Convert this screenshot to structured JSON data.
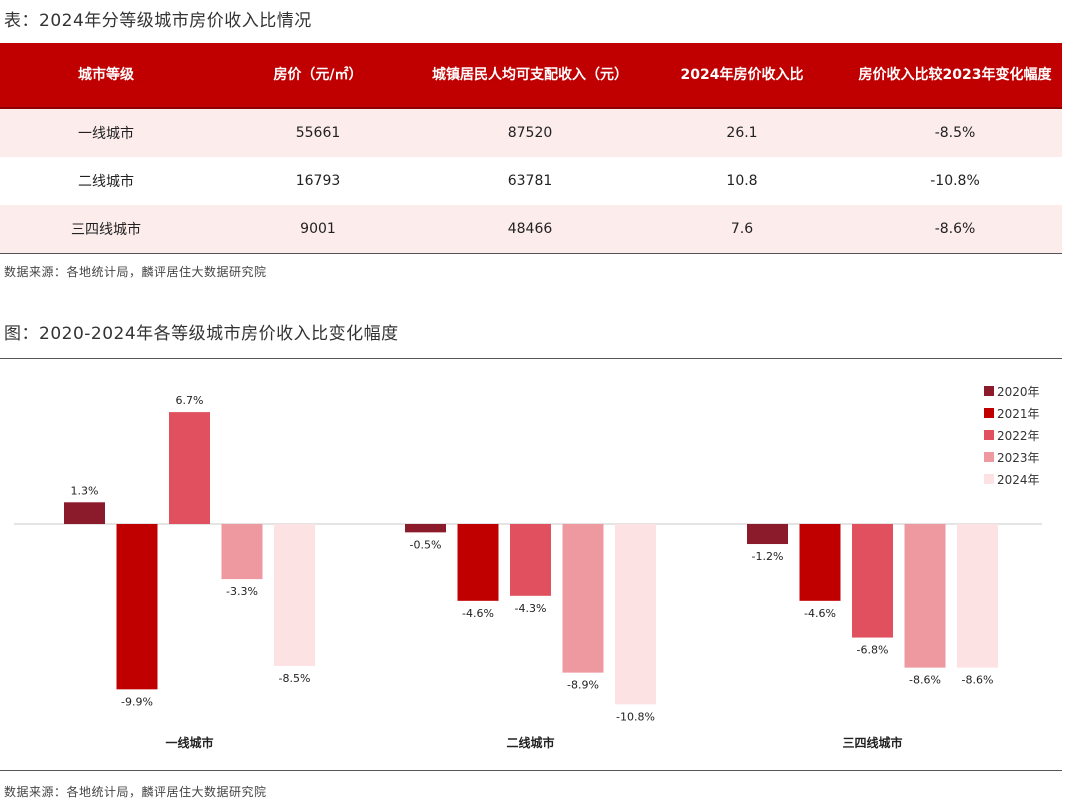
{
  "table": {
    "title": "表：2024年分等级城市房价收入比情况",
    "headers": [
      "城市等级",
      "房价（元/㎡）",
      "城镇居民人均可支配收入（元）",
      "2024年房价收入比",
      "房价收入比较2023年变化幅度"
    ],
    "rows": [
      [
        "一线城市",
        "55661",
        "87520",
        "26.1",
        "-8.5%"
      ],
      [
        "二线城市",
        "16793",
        "63781",
        "10.8",
        "-10.8%"
      ],
      [
        "三四线城市",
        "9001",
        "48466",
        "7.6",
        "-8.6%"
      ]
    ],
    "source": "数据来源：各地统计局，麟评居住大数据研究院"
  },
  "chart": {
    "title": "图：2020-2024年各等级城市房价收入比变化幅度",
    "source": "数据来源：各地统计局，麟评居住大数据研究院"
  },
  "colors": [
    "#8b1a2a",
    "#c00000",
    "#e0505e",
    "#ee99a0",
    "#fde2e4"
  ],
  "chart_data": {
    "type": "bar",
    "categories": [
      "一线城市",
      "二线城市",
      "三四线城市"
    ],
    "series": [
      {
        "name": "2020年",
        "values": [
          1.3,
          -0.5,
          -1.2
        ]
      },
      {
        "name": "2021年",
        "values": [
          -9.9,
          -4.6,
          -4.6
        ]
      },
      {
        "name": "2022年",
        "values": [
          6.7,
          -4.3,
          -6.8
        ]
      },
      {
        "name": "2023年",
        "values": [
          -3.3,
          -8.9,
          -8.6
        ]
      },
      {
        "name": "2024年",
        "values": [
          -8.5,
          -10.8,
          -8.6
        ]
      }
    ],
    "value_labels": [
      [
        "1.3%",
        "-0.5%",
        "-1.2%"
      ],
      [
        "-9.9%",
        "-4.6%",
        "-4.6%"
      ],
      [
        "6.7%",
        "-4.3%",
        "-6.8%"
      ],
      [
        "-3.3%",
        "-8.9%",
        "-8.6%"
      ],
      [
        "-8.5%",
        "-10.8%",
        "-8.6%"
      ]
    ],
    "legend_position": "top-right",
    "grid": false
  }
}
